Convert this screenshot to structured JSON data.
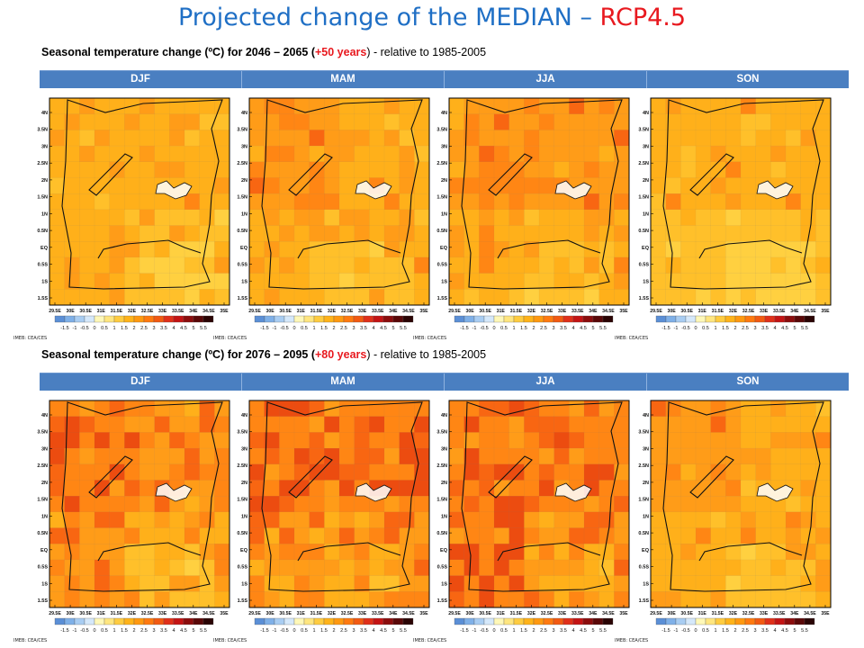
{
  "title": {
    "main": "Projected change of the MEDIAN – ",
    "scenario": "RCP4.5"
  },
  "rows": [
    {
      "subtitle": {
        "prefix": "Seasonal temperature change (ºC) for 2046 – 2065  (",
        "horizon": "+50 years",
        "suffix": ") - relative to 1985-2005"
      },
      "seasons": [
        "DJF",
        "MAM",
        "JJA",
        "SON"
      ]
    },
    {
      "subtitle": {
        "prefix": "Seasonal temperature change (ºC) for 2076 – 2095  (",
        "horizon": "+80 years",
        "suffix": ") - relative to 1985-2005"
      },
      "seasons": [
        "DJF",
        "MAM",
        "JJA",
        "SON"
      ]
    }
  ],
  "map": {
    "x_ticks": [
      "29.5E",
      "30E",
      "30.5E",
      "31E",
      "31.5E",
      "32E",
      "32.5E",
      "33E",
      "33.5E",
      "34E",
      "34.5E",
      "35E"
    ],
    "y_ticks": [
      "4N",
      "3.5N",
      "3N",
      "2.5N",
      "2N",
      "1.5N",
      "1N",
      "0.5N",
      "EQ",
      "0.5S",
      "1S",
      "1.5S"
    ]
  },
  "colorbar": {
    "labels": [
      "-1.5",
      "-1",
      "-0.5",
      "0",
      "0.5",
      "1",
      "1.5",
      "2",
      "2.5",
      "3",
      "3.5",
      "4",
      "4.5",
      "5",
      "5.5"
    ],
    "colors": [
      "#5b8fd6",
      "#7fb0e8",
      "#a9cdf2",
      "#d5e8fa",
      "#fff8b8",
      "#ffe680",
      "#ffcc40",
      "#ffb31a",
      "#ff9910",
      "#ff7a10",
      "#f25a12",
      "#e0301a",
      "#c41414",
      "#8c0d0d",
      "#5a0808",
      "#2a0404"
    ]
  },
  "credit": "IMEB: CEA/CES",
  "panels": [
    {
      "season": "DJF",
      "period": "2046-2065",
      "base": [
        3,
        3,
        3,
        2
      ],
      "red": 0.04,
      "orange": 0.16
    },
    {
      "season": "MAM",
      "period": "2046-2065",
      "base": [
        4,
        3,
        3,
        3
      ],
      "red": 0.05,
      "orange": 0.28
    },
    {
      "season": "JJA",
      "period": "2046-2065",
      "base": [
        4,
        4,
        3,
        3
      ],
      "red": 0.05,
      "orange": 0.28
    },
    {
      "season": "SON",
      "period": "2046-2065",
      "base": [
        3,
        3,
        2,
        2
      ],
      "red": 0.02,
      "orange": 0.12
    },
    {
      "season": "DJF",
      "period": "2076-2095",
      "base": [
        5,
        4,
        4,
        3
      ],
      "red": 0.18,
      "orange": 0.2
    },
    {
      "season": "MAM",
      "period": "2076-2095",
      "base": [
        5,
        5,
        4,
        4
      ],
      "red": 0.22,
      "orange": 0.22
    },
    {
      "season": "JJA",
      "period": "2076-2095",
      "base": [
        5,
        5,
        5,
        4
      ],
      "red": 0.22,
      "orange": 0.25
    },
    {
      "season": "SON",
      "period": "2076-2095",
      "base": [
        4,
        3,
        3,
        3
      ],
      "red": 0.06,
      "orange": 0.16
    }
  ]
}
